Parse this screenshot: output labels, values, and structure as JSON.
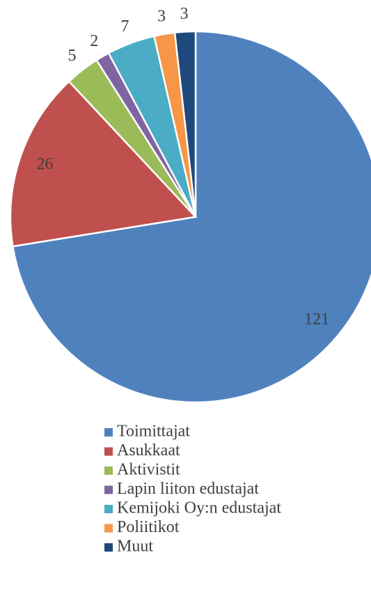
{
  "chart_data": {
    "type": "pie",
    "categories": [
      "Toimittajat",
      "Asukkaat",
      "Aktivistit",
      "Lapin liiton edustajat",
      "Kemijoki Oy:n edustajat",
      "Poliitikot",
      "Muut"
    ],
    "values": [
      121,
      26,
      5,
      2,
      7,
      3,
      3
    ],
    "colors": [
      "#4f81bd",
      "#c0504d",
      "#9bbb59",
      "#8064a2",
      "#4bacc6",
      "#f79646",
      "#1f497d"
    ],
    "legend": "bottom"
  }
}
